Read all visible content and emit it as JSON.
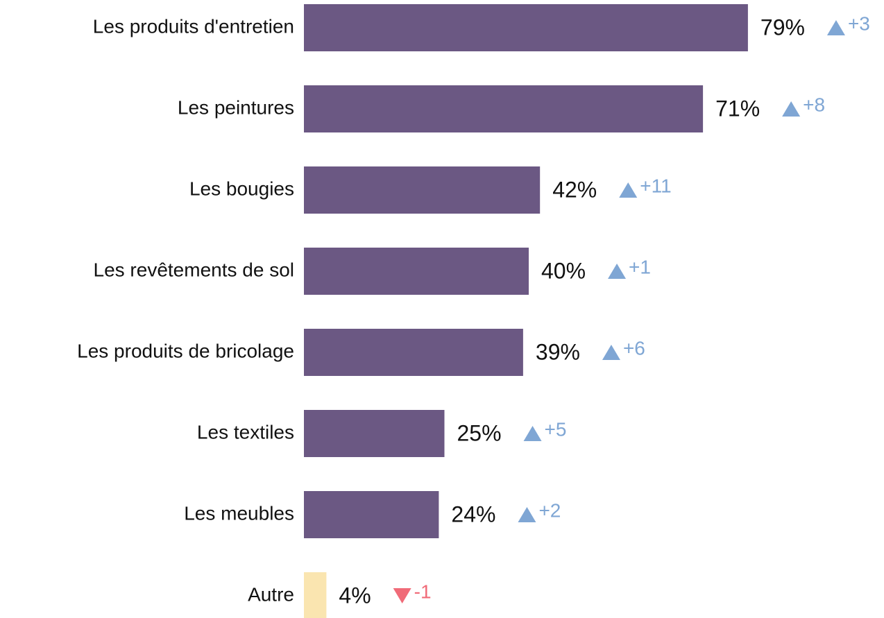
{
  "chart_data": {
    "type": "hbar",
    "categories": [
      "Les produits d'entretien",
      "Les peintures",
      "Les bougies",
      "Les revêtements de sol",
      "Les produits de bricolage",
      "Les textiles",
      "Les meubles",
      "Autre"
    ],
    "values": [
      79,
      71,
      42,
      40,
      39,
      25,
      24,
      4
    ],
    "value_labels": [
      "79%",
      "71%",
      "42%",
      "40%",
      "39%",
      "25%",
      "24%",
      "4%"
    ],
    "colors": [
      "#6b5883",
      "#6b5883",
      "#6b5883",
      "#6b5883",
      "#6b5883",
      "#6b5883",
      "#6b5883",
      "#fae5b0"
    ],
    "changes": [
      3,
      8,
      11,
      1,
      6,
      5,
      2,
      -1
    ],
    "change_labels": [
      "+3",
      "+8",
      "+11",
      "+1",
      "+6",
      "+5",
      "+2",
      "-1"
    ],
    "change_colors": {
      "up": "#7fa6d4",
      "down": "#f06b78"
    }
  }
}
